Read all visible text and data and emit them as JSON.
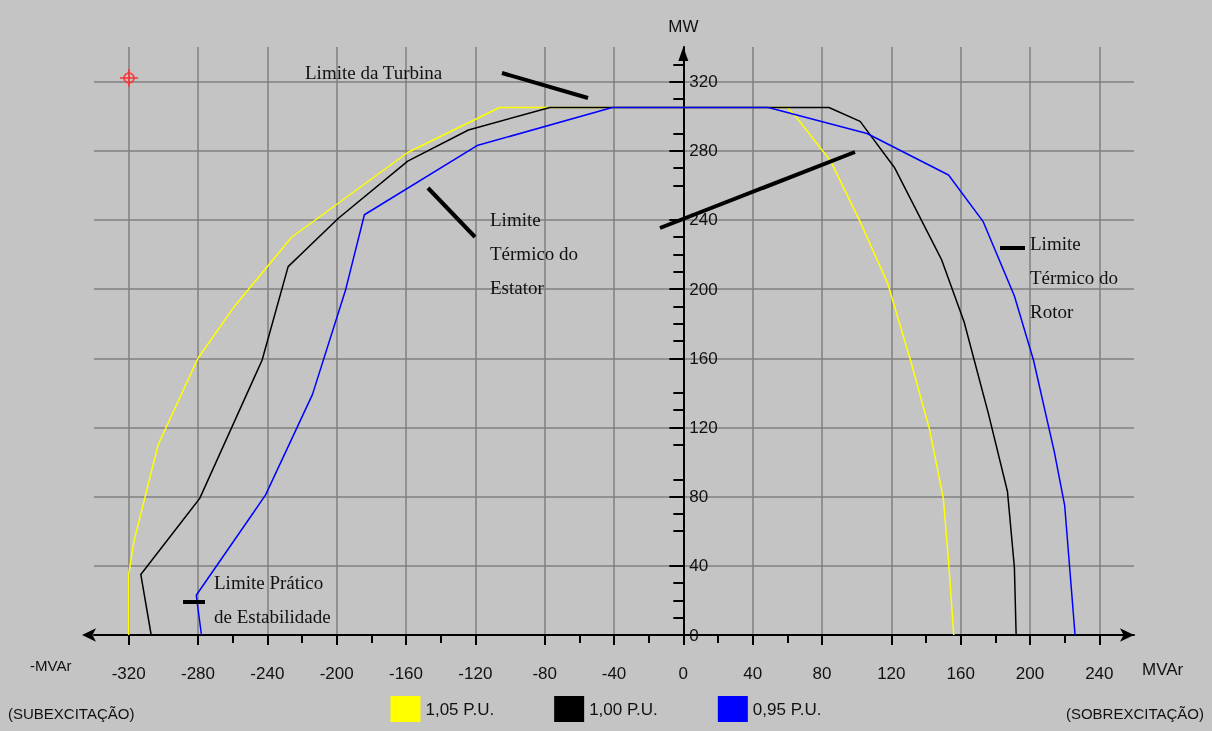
{
  "chart_data": {
    "type": "line",
    "ylabel": "MW",
    "xlabel": "MVAr",
    "xlim": [
      -340,
      260
    ],
    "ylim": [
      0,
      340
    ],
    "xticks": [
      -320,
      -280,
      -240,
      -200,
      -160,
      -120,
      -80,
      -40,
      0,
      40,
      80,
      120,
      160,
      200,
      240
    ],
    "yticks": [
      0,
      40,
      80,
      120,
      160,
      200,
      240,
      280,
      320
    ],
    "grid": true,
    "legend": "bottom",
    "marker": "none",
    "line_style": "solid",
    "series": [
      {
        "name": "1,05 P.U.",
        "color": "#ffff00",
        "x": [
          -320,
          -320,
          -317,
          -303,
          -280,
          -259,
          -226,
          -159,
          -106,
          60,
          64,
          85,
          102,
          118,
          131,
          142,
          150,
          153,
          156
        ],
        "values": [
          0,
          35,
          54,
          110,
          160,
          190,
          230,
          279,
          305,
          305,
          301,
          274,
          239,
          203,
          159,
          119,
          79,
          43,
          0
        ]
      },
      {
        "name": "1,00 P.U.",
        "color": "#000000",
        "x": [
          -307,
          -313,
          -279,
          -243,
          -228,
          -199,
          -159,
          -124,
          -77,
          84,
          102,
          122,
          149,
          162,
          176,
          187,
          191,
          192
        ],
        "values": [
          0,
          35,
          79,
          159,
          213,
          241,
          274,
          292,
          305,
          305,
          297,
          270,
          217,
          181,
          128,
          83,
          39,
          0
        ]
      },
      {
        "name": "0,95 P.U.",
        "color": "#0000ff",
        "x": [
          -278,
          -281,
          -241,
          -214,
          -195,
          -184,
          -119,
          -41,
          49,
          106,
          153,
          173,
          191,
          202,
          214,
          220,
          226
        ],
        "values": [
          0,
          23,
          81,
          139,
          199,
          243,
          283,
          305,
          305,
          290,
          266,
          239,
          196,
          159,
          106,
          75,
          0
        ]
      }
    ],
    "annotations": [
      "Limite da Turbina",
      "Limite\nTérmico do\nEstator",
      "Limite\nTérmico do\nRotor",
      "Limite Prático\nde Estabilidade",
      "-MVAr",
      "(SUBEXCITAÇÃO)",
      "(SOBREXCITAÇÃO)"
    ]
  }
}
